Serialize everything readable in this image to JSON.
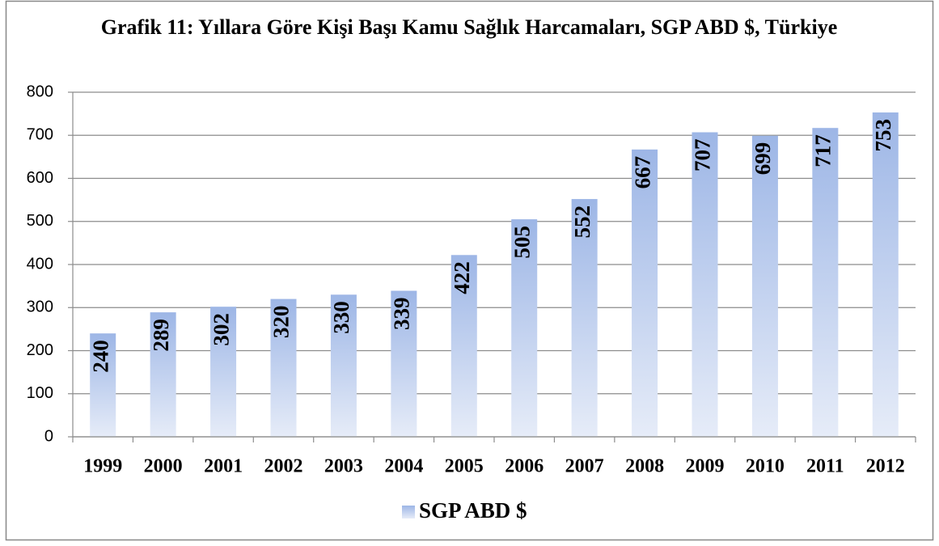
{
  "chart_data": {
    "type": "bar",
    "title": "Grafik 11: Yıllara Göre Kişi Başı Kamu Sağlık Harcamaları, SGP ABD $, Türkiye",
    "categories": [
      "1999",
      "2000",
      "2001",
      "2002",
      "2003",
      "2004",
      "2005",
      "2006",
      "2007",
      "2008",
      "2009",
      "2010",
      "2011",
      "2012"
    ],
    "series": [
      {
        "name": "SGP ABD $",
        "color": "#9db6e6",
        "values": [
          240,
          289,
          302,
          320,
          330,
          339,
          422,
          505,
          552,
          667,
          707,
          699,
          717,
          753
        ]
      }
    ],
    "ylim": [
      0,
      800
    ],
    "yticks": [
      0,
      100,
      200,
      300,
      400,
      500,
      600,
      700,
      800
    ],
    "grid": true,
    "legend": "bottom"
  }
}
